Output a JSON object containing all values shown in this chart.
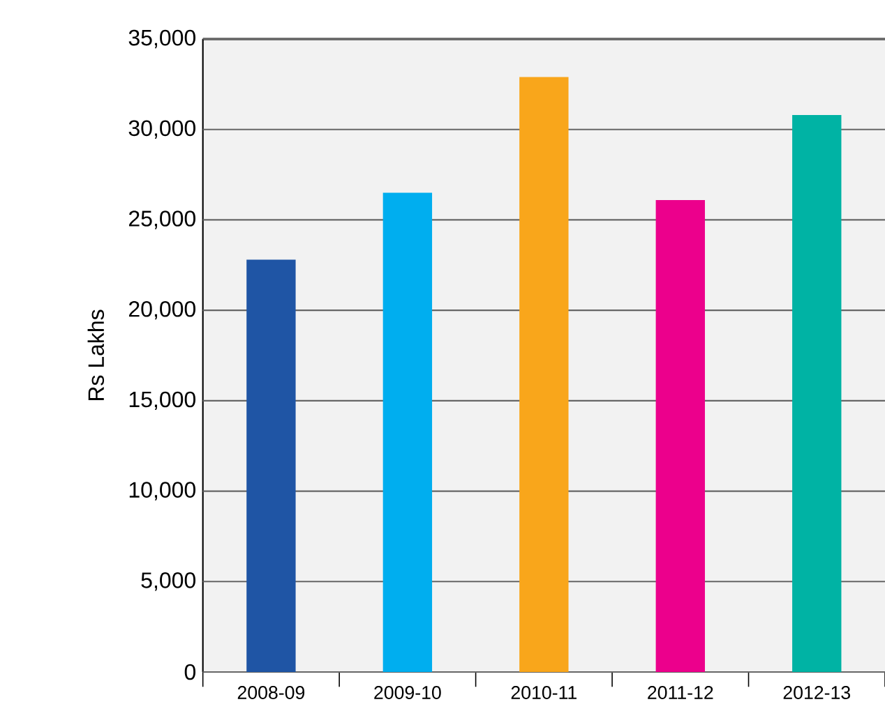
{
  "chart_data": {
    "type": "bar",
    "ylabel": "Rs Lakhs",
    "categories": [
      "2008-09",
      "2009-10",
      "2010-11",
      "2011-12",
      "2012-13"
    ],
    "values": [
      22800,
      26500,
      32900,
      26100,
      30800
    ],
    "colors": [
      "#1f55a5",
      "#00aeef",
      "#f9a61b",
      "#ec008c",
      "#00b3a4"
    ],
    "ylim": [
      0,
      35000
    ],
    "yticks": [
      {
        "value": 0,
        "label": "0"
      },
      {
        "value": 5000,
        "label": "5,000"
      },
      {
        "value": 10000,
        "label": "10,000"
      },
      {
        "value": 15000,
        "label": "15,000"
      },
      {
        "value": 20000,
        "label": "20,000"
      },
      {
        "value": 25000,
        "label": "25,000"
      },
      {
        "value": 30000,
        "label": "30,000"
      },
      {
        "value": 35000,
        "label": "35,000"
      }
    ],
    "grid": "y"
  }
}
